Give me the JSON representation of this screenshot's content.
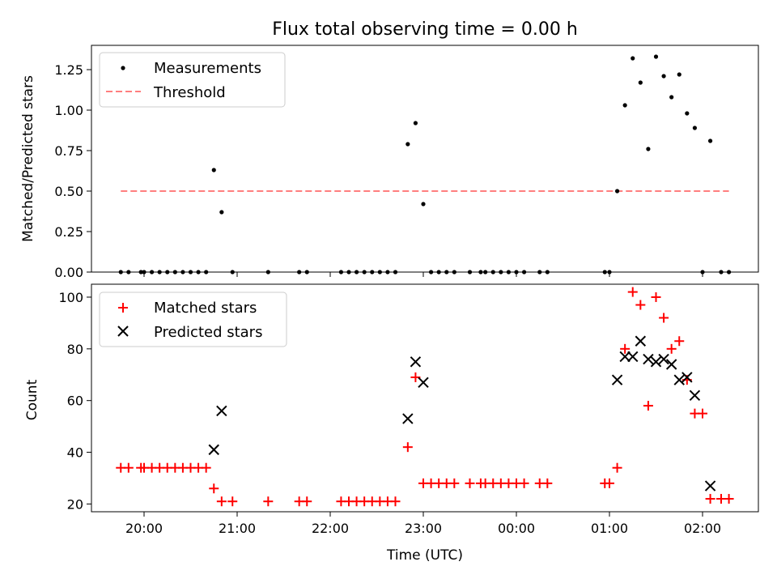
{
  "chart_data": [
    {
      "type": "scatter",
      "title": "Flux total observing time = 0.00 h",
      "xlabel": "",
      "ylabel": "Matched/Predicted stars",
      "ylim": [
        0,
        1.4
      ],
      "yticks": [
        0.0,
        0.25,
        0.5,
        0.75,
        1.0,
        1.25
      ],
      "ytick_labels": [
        "0.00",
        "0.25",
        "0.50",
        "0.75",
        "1.00",
        "1.25"
      ],
      "x_axis": "time (UTC)",
      "tick_labels_hidden": true,
      "legend_position": "upper-left",
      "legend": [
        "Measurements",
        "Threshold"
      ],
      "threshold": {
        "name": "Threshold",
        "value": 0.5,
        "x_start": "19:45",
        "x_end": "02:17",
        "color": "#ff7f7f",
        "style": "dashed"
      },
      "measurements": {
        "name": "Measurements",
        "color": "#000000",
        "points": [
          [
            "19:45",
            0
          ],
          [
            "19:50",
            0
          ],
          [
            "19:58",
            0
          ],
          [
            "20:00",
            0
          ],
          [
            "20:05",
            0
          ],
          [
            "20:10",
            0
          ],
          [
            "20:15",
            0
          ],
          [
            "20:20",
            0
          ],
          [
            "20:25",
            0
          ],
          [
            "20:30",
            0
          ],
          [
            "20:35",
            0
          ],
          [
            "20:40",
            0
          ],
          [
            "20:45",
            0.63
          ],
          [
            "20:50",
            0.37
          ],
          [
            "20:57",
            0
          ],
          [
            "21:20",
            0
          ],
          [
            "21:40",
            0
          ],
          [
            "21:45",
            0
          ],
          [
            "22:07",
            0
          ],
          [
            "22:12",
            0
          ],
          [
            "22:17",
            0
          ],
          [
            "22:22",
            0
          ],
          [
            "22:27",
            0
          ],
          [
            "22:32",
            0
          ],
          [
            "22:37",
            0
          ],
          [
            "22:42",
            0
          ],
          [
            "22:50",
            0.79
          ],
          [
            "22:55",
            0.92
          ],
          [
            "23:00",
            0.42
          ],
          [
            "23:05",
            0
          ],
          [
            "23:10",
            0
          ],
          [
            "23:15",
            0
          ],
          [
            "23:20",
            0
          ],
          [
            "23:30",
            0
          ],
          [
            "23:37",
            0
          ],
          [
            "23:40",
            0
          ],
          [
            "23:45",
            0
          ],
          [
            "23:50",
            0
          ],
          [
            "23:55",
            0
          ],
          [
            "00:00",
            0
          ],
          [
            "00:05",
            0
          ],
          [
            "00:15",
            0
          ],
          [
            "00:20",
            0
          ],
          [
            "00:57",
            0
          ],
          [
            "01:00",
            0
          ],
          [
            "01:05",
            0.5
          ],
          [
            "01:10",
            1.03
          ],
          [
            "01:15",
            1.32
          ],
          [
            "01:20",
            1.17
          ],
          [
            "01:25",
            0.76
          ],
          [
            "01:30",
            1.33
          ],
          [
            "01:35",
            1.21
          ],
          [
            "01:40",
            1.08
          ],
          [
            "01:45",
            1.22
          ],
          [
            "01:50",
            0.98
          ],
          [
            "01:55",
            0.89
          ],
          [
            "02:00",
            0
          ],
          [
            "02:05",
            0.81
          ],
          [
            "02:12",
            0
          ],
          [
            "02:17",
            0
          ]
        ]
      }
    },
    {
      "type": "scatter",
      "title": "",
      "xlabel": "Time (UTC)",
      "ylabel": "Count",
      "ylim": [
        17,
        105
      ],
      "yticks": [
        20,
        40,
        60,
        80,
        100
      ],
      "ytick_labels": [
        "20",
        "40",
        "60",
        "80",
        "100"
      ],
      "xticks": [
        "20:00",
        "21:00",
        "22:00",
        "23:00",
        "00:00",
        "01:00",
        "02:00"
      ],
      "legend_position": "upper-left",
      "legend": [
        "Matched stars",
        "Predicted stars"
      ],
      "series": [
        {
          "name": "Matched stars",
          "marker": "+",
          "color": "#ff0000",
          "points": [
            [
              "19:45",
              34
            ],
            [
              "19:50",
              34
            ],
            [
              "19:58",
              34
            ],
            [
              "20:00",
              34
            ],
            [
              "20:05",
              34
            ],
            [
              "20:10",
              34
            ],
            [
              "20:15",
              34
            ],
            [
              "20:20",
              34
            ],
            [
              "20:25",
              34
            ],
            [
              "20:30",
              34
            ],
            [
              "20:35",
              34
            ],
            [
              "20:40",
              34
            ],
            [
              "20:45",
              26
            ],
            [
              "20:50",
              21
            ],
            [
              "20:57",
              21
            ],
            [
              "21:20",
              21
            ],
            [
              "21:40",
              21
            ],
            [
              "21:45",
              21
            ],
            [
              "22:07",
              21
            ],
            [
              "22:12",
              21
            ],
            [
              "22:17",
              21
            ],
            [
              "22:22",
              21
            ],
            [
              "22:27",
              21
            ],
            [
              "22:32",
              21
            ],
            [
              "22:37",
              21
            ],
            [
              "22:42",
              21
            ],
            [
              "22:50",
              42
            ],
            [
              "22:55",
              69
            ],
            [
              "23:00",
              28
            ],
            [
              "23:05",
              28
            ],
            [
              "23:10",
              28
            ],
            [
              "23:15",
              28
            ],
            [
              "23:20",
              28
            ],
            [
              "23:30",
              28
            ],
            [
              "23:37",
              28
            ],
            [
              "23:40",
              28
            ],
            [
              "23:45",
              28
            ],
            [
              "23:50",
              28
            ],
            [
              "23:55",
              28
            ],
            [
              "00:00",
              28
            ],
            [
              "00:05",
              28
            ],
            [
              "00:15",
              28
            ],
            [
              "00:20",
              28
            ],
            [
              "00:57",
              28
            ],
            [
              "01:00",
              28
            ],
            [
              "01:05",
              34
            ],
            [
              "01:10",
              80
            ],
            [
              "01:15",
              102
            ],
            [
              "01:20",
              97
            ],
            [
              "01:25",
              58
            ],
            [
              "01:30",
              100
            ],
            [
              "01:35",
              92
            ],
            [
              "01:40",
              80
            ],
            [
              "01:45",
              83
            ],
            [
              "01:50",
              68
            ],
            [
              "01:55",
              55
            ],
            [
              "02:00",
              55
            ],
            [
              "02:05",
              22
            ],
            [
              "02:12",
              22
            ],
            [
              "02:17",
              22
            ]
          ]
        },
        {
          "name": "Predicted stars",
          "marker": "x",
          "color": "#000000",
          "points": [
            [
              "20:45",
              41
            ],
            [
              "20:50",
              56
            ],
            [
              "22:50",
              53
            ],
            [
              "22:55",
              75
            ],
            [
              "23:00",
              67
            ],
            [
              "01:05",
              68
            ],
            [
              "01:10",
              77
            ],
            [
              "01:15",
              77
            ],
            [
              "01:20",
              83
            ],
            [
              "01:25",
              76
            ],
            [
              "01:30",
              75
            ],
            [
              "01:35",
              76
            ],
            [
              "01:40",
              74
            ],
            [
              "01:45",
              68
            ],
            [
              "01:50",
              69
            ],
            [
              "01:55",
              62
            ],
            [
              "02:05",
              27
            ]
          ]
        }
      ]
    }
  ]
}
